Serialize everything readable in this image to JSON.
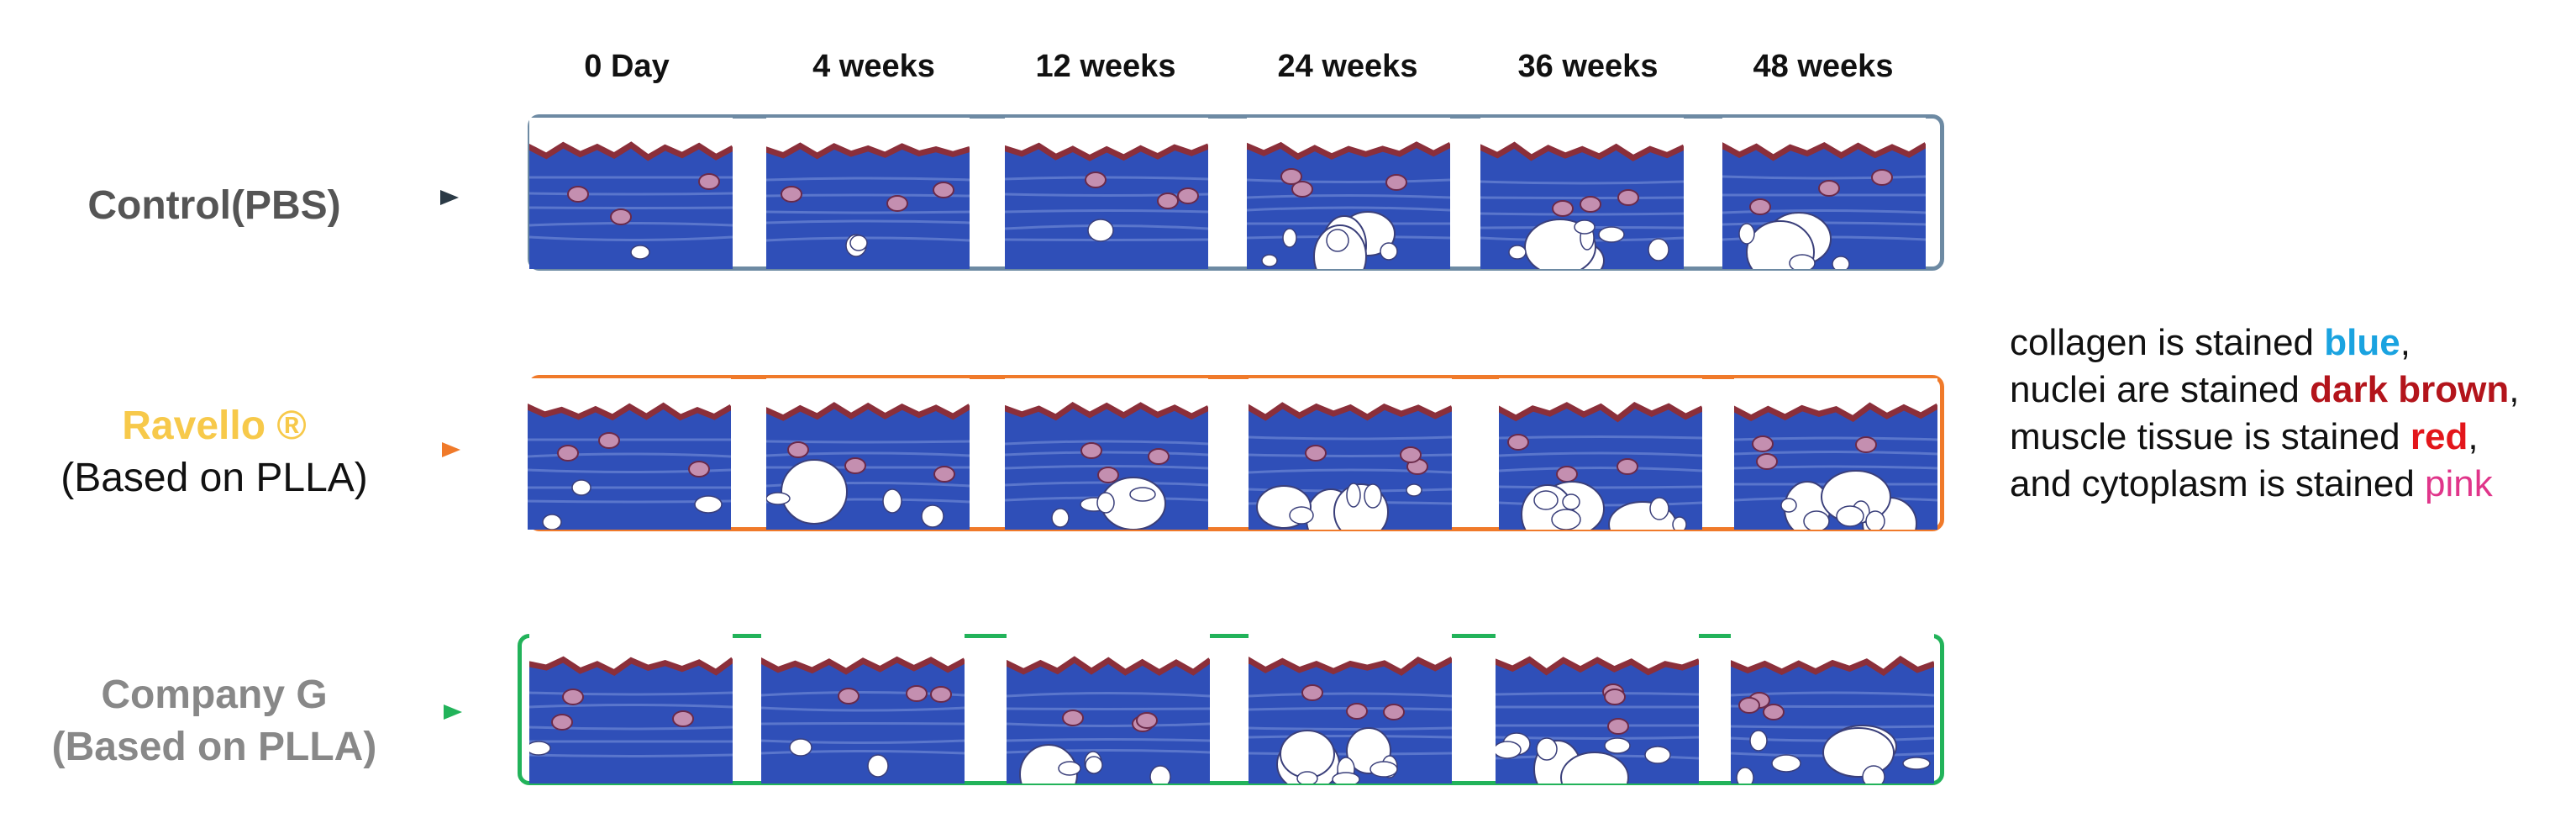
{
  "columns": [
    "0 Day",
    "4 weeks",
    "12 weeks",
    "24 weeks",
    "36 weeks",
    "48 weeks"
  ],
  "rows": [
    {
      "label": "Control(PBS)",
      "sublabel": "",
      "label_color": "#555555",
      "sublabel_color": "#555555",
      "frame_color": "#6d8aa3"
    },
    {
      "label": "Ravello ®",
      "sublabel": "(Based on PLLA)",
      "label_color": "#f7c94a",
      "sublabel_color": "#111111",
      "frame_color": "#f07a2a"
    },
    {
      "label": "Company G",
      "sublabel": "(Based on PLLA)",
      "label_color": "#888888",
      "sublabel_color": "#888888",
      "frame_color": "#22b35a"
    }
  ],
  "stain_colors": {
    "epidermis": "#8b2f3a",
    "collagen": "#2f4fb8",
    "collagen_light": "#7d98dd",
    "cytoplasm": "#c48fb0",
    "fat": "#ffffff"
  },
  "legend": {
    "line1": {
      "before": "collagen is stained ",
      "highlight": "blue",
      "after": ","
    },
    "line2": {
      "before": "nuclei are stained ",
      "highlight": "dark brown",
      "after": ","
    },
    "line3": {
      "before": "muscle tissue is stained ",
      "highlight": "red",
      "after": ","
    },
    "line4": {
      "before": "and cytoplasm is stained ",
      "highlight": "pink",
      "after": ""
    }
  }
}
